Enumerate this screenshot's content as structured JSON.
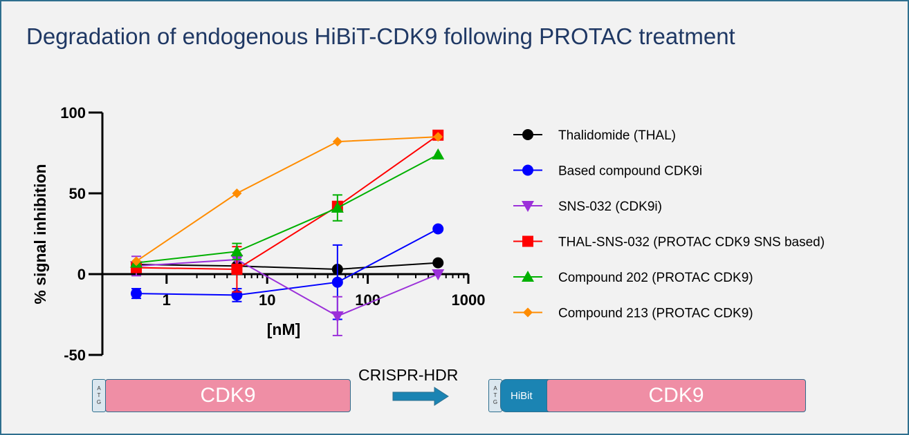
{
  "title": "Degradation of endogenous HiBiT-CDK9 following PROTAC treatment",
  "chart_data": {
    "type": "line",
    "title": "Degradation of endogenous HiBiT-CDK9 following PROTAC treatment",
    "xlabel": "[nM]",
    "ylabel": "% signal inhibition",
    "x_scale": "log",
    "xlim": [
      0.23,
      1000
    ],
    "ylim": [
      -50,
      100
    ],
    "y_ticks": [
      {
        "value": -50,
        "label": "-50"
      },
      {
        "value": 0,
        "label": "0"
      },
      {
        "value": 50,
        "label": "50"
      },
      {
        "value": 100,
        "label": "100"
      }
    ],
    "x_ticks": [
      {
        "value": 1,
        "label": "1"
      },
      {
        "value": 10,
        "label": "10"
      },
      {
        "value": 100,
        "label": "100"
      },
      {
        "value": 1000,
        "label": "1000"
      }
    ],
    "x": [
      0.5,
      5,
      50,
      500
    ],
    "legend_position": "right",
    "grid": false,
    "series": [
      {
        "name": "Thalidomide (THAL)",
        "color": "#000000",
        "marker": "circle",
        "values": [
          6,
          5,
          3,
          7
        ],
        "errors": [
          0,
          0,
          0,
          0
        ]
      },
      {
        "name": "Based compound CDK9i",
        "color": "#0000ff",
        "marker": "circle",
        "values": [
          -12,
          -13,
          -5,
          28
        ],
        "errors": [
          3,
          4,
          23,
          0
        ]
      },
      {
        "name": "SNS-032 (CDK9i)",
        "color": "#9b30d9",
        "marker": "triangle-down",
        "values": [
          5,
          9,
          -26,
          0
        ],
        "errors": [
          6,
          0,
          12,
          0
        ]
      },
      {
        "name": "THAL-SNS-032 (PROTAC CDK9 SNS based)",
        "color": "#ff0000",
        "marker": "square",
        "values": [
          4,
          3,
          42,
          86
        ],
        "errors": [
          0,
          14,
          0,
          0
        ]
      },
      {
        "name": "Compound 202 (PROTAC CDK9)",
        "color": "#00b000",
        "marker": "triangle-up",
        "values": [
          7,
          14,
          41,
          74
        ],
        "errors": [
          0,
          5,
          8,
          0
        ]
      },
      {
        "name": "Compound 213 (PROTAC CDK9)",
        "color": "#ff8c00",
        "marker": "diamond",
        "values": [
          8,
          50,
          82,
          85
        ],
        "errors": [
          0,
          0,
          0,
          0
        ]
      }
    ]
  },
  "diagram": {
    "before_gene": "CDK9",
    "atg_letters": [
      "A",
      "T",
      "G"
    ],
    "process_label": "CRISPR-HDR",
    "tag_label": "HiBit",
    "after_gene": "CDK9",
    "arrow_color": "#1b84b3"
  }
}
